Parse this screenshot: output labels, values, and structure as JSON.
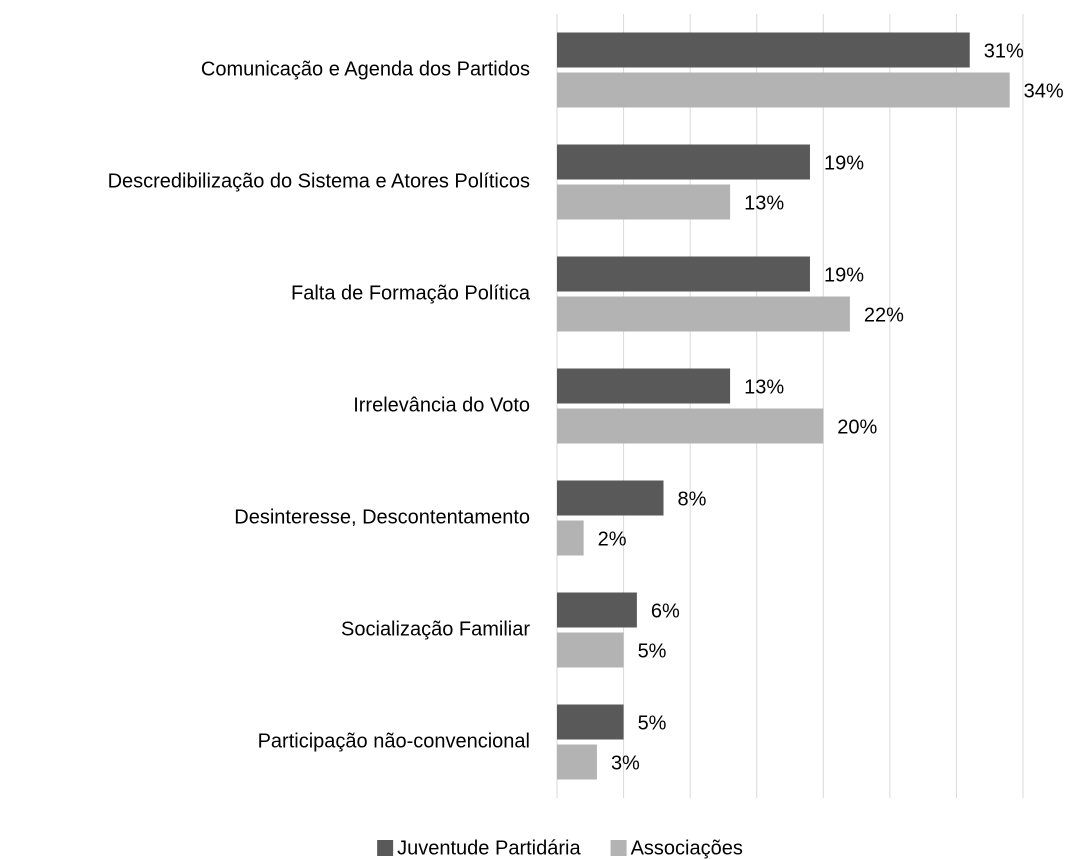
{
  "chart_data": {
    "type": "bar",
    "orientation": "horizontal",
    "categories": [
      "Comunicação e Agenda dos Partidos",
      "Descredibilização do Sistema e Atores Políticos",
      "Falta de Formação Política",
      "Irrelevância do Voto",
      "Desinteresse, Descontentamento",
      "Socialização Familiar",
      "Participação não-convencional"
    ],
    "series": [
      {
        "name": "Juventude Partidária",
        "color": "#595959",
        "values": [
          31,
          19,
          19,
          13,
          8,
          6,
          5
        ],
        "value_labels": [
          "31%",
          "19%",
          "19%",
          "13%",
          "8%",
          "6%",
          "5%"
        ]
      },
      {
        "name": "Associações",
        "color": "#b3b3b3",
        "values": [
          34,
          13,
          22,
          20,
          2,
          5,
          3
        ],
        "value_labels": [
          "34%",
          "13%",
          "22%",
          "20%",
          "2%",
          "5%",
          "3%"
        ]
      }
    ],
    "xlim": [
      0,
      35
    ],
    "xticks": [
      0,
      5,
      10,
      15,
      20,
      25,
      30,
      35
    ],
    "grid": true,
    "legend": "bottom"
  }
}
